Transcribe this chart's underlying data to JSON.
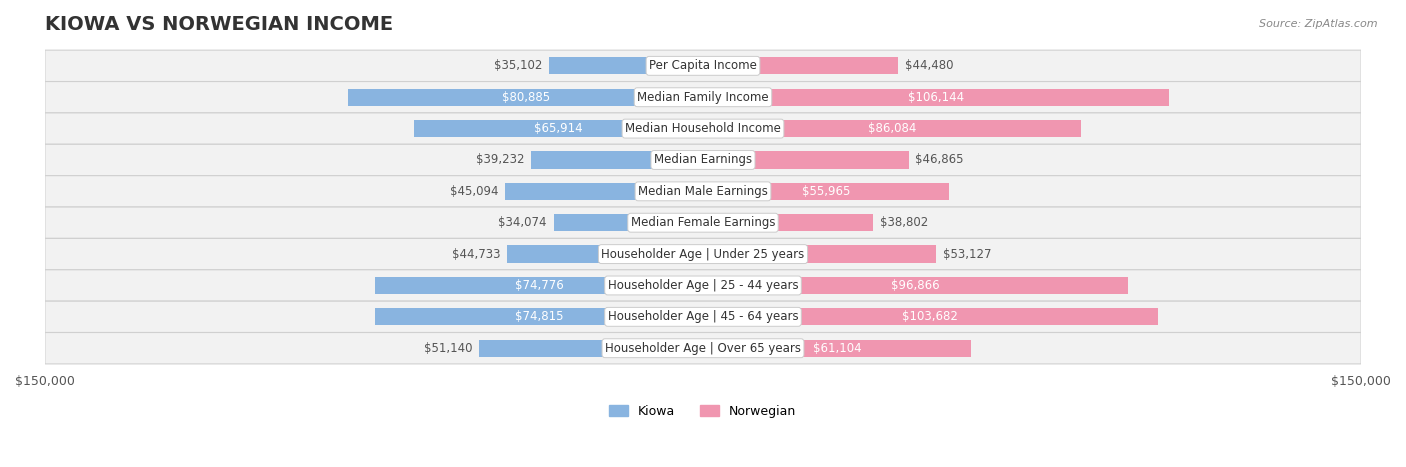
{
  "title": "KIOWA VS NORWEGIAN INCOME",
  "source": "Source: ZipAtlas.com",
  "categories": [
    "Per Capita Income",
    "Median Family Income",
    "Median Household Income",
    "Median Earnings",
    "Median Male Earnings",
    "Median Female Earnings",
    "Householder Age | Under 25 years",
    "Householder Age | 25 - 44 years",
    "Householder Age | 45 - 64 years",
    "Householder Age | Over 65 years"
  ],
  "kiowa_values": [
    35102,
    80885,
    65914,
    39232,
    45094,
    34074,
    44733,
    74776,
    74815,
    51140
  ],
  "norwegian_values": [
    44480,
    106144,
    86084,
    46865,
    55965,
    38802,
    53127,
    96866,
    103682,
    61104
  ],
  "kiowa_color": "#89b4e0",
  "norwegian_color": "#f096b0",
  "kiowa_dark_color": "#5a9fd4",
  "norwegian_dark_color": "#e8607a",
  "row_bg_color": "#f2f2f2",
  "row_border_color": "#d0d0d0",
  "axis_limit": 150000,
  "bar_height": 0.55,
  "title_fontsize": 14,
  "label_fontsize": 8.5,
  "value_fontsize": 8.5,
  "category_fontsize": 8.5,
  "legend_fontsize": 9
}
